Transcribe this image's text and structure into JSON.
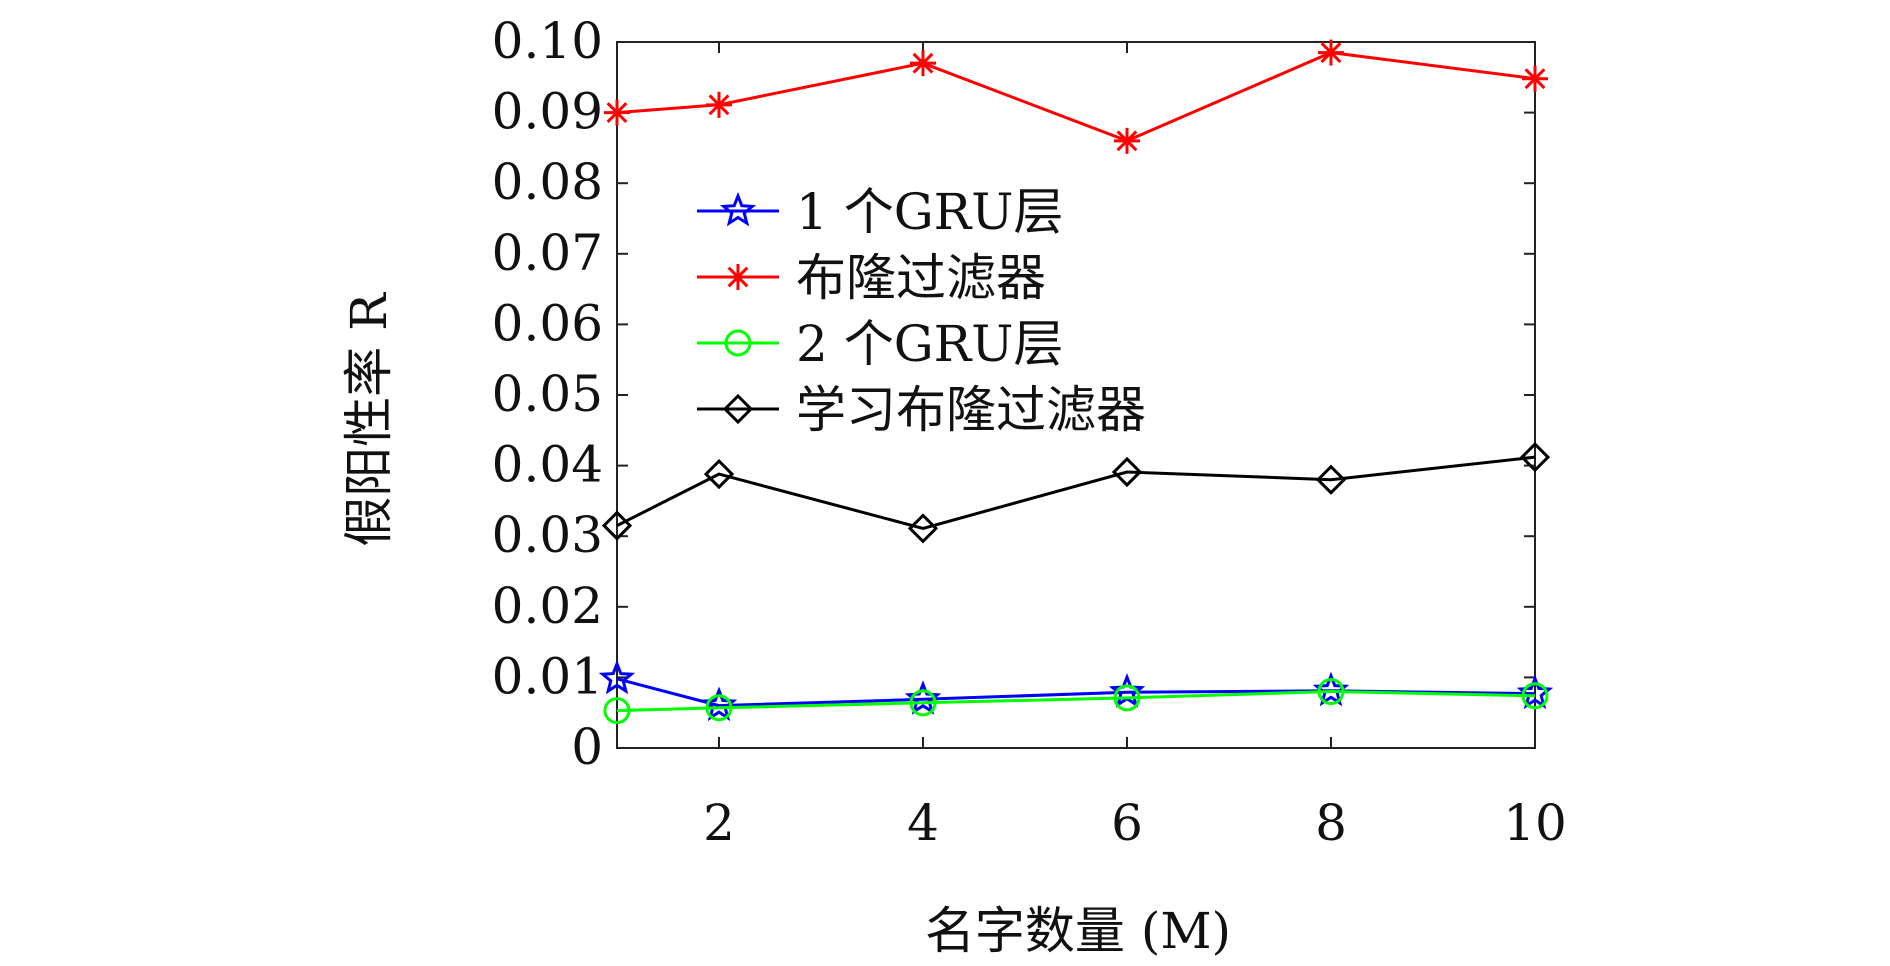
{
  "chart_data": {
    "type": "line",
    "title": "",
    "xlabel": "名字数量 (M)",
    "ylabel": "假阳性率 R",
    "xlim": [
      1,
      10
    ],
    "ylim": [
      0,
      0.1
    ],
    "xticks": [
      2,
      4,
      6,
      8,
      10
    ],
    "yticks": [
      0,
      0.01,
      0.02,
      0.03,
      0.04,
      0.05,
      0.06,
      0.07,
      0.08,
      0.09,
      0.1
    ],
    "xtick_labels": [
      "2",
      "4",
      "6",
      "8",
      "10"
    ],
    "ytick_labels": [
      "0",
      "0.01",
      "0.02",
      "0.03",
      "0.04",
      "0.05",
      "0.06",
      "0.07",
      "0.08",
      "0.09",
      "0.10"
    ],
    "grid": false,
    "legend_position": "upper-left-inside",
    "x": [
      1,
      2,
      4,
      6,
      8,
      10
    ],
    "series": [
      {
        "name": "1 个GRU层",
        "values": [
          0.0098,
          0.006,
          0.0069,
          0.0079,
          0.0081,
          0.0077
        ],
        "color": "#0000ff",
        "marker": "star"
      },
      {
        "name": "布隆过滤器",
        "values": [
          0.09,
          0.0911,
          0.097,
          0.086,
          0.0985,
          0.0948
        ],
        "color": "#ff0000",
        "marker": "asterisk"
      },
      {
        "name": "2 个GRU层",
        "values": [
          0.0053,
          0.0057,
          0.0064,
          0.0071,
          0.008,
          0.0074
        ],
        "color": "#00ff00",
        "marker": "circle"
      },
      {
        "name": "学习布隆过滤器",
        "values": [
          0.0315,
          0.0388,
          0.0311,
          0.0391,
          0.038,
          0.0412
        ],
        "color": "#000000",
        "marker": "diamond"
      }
    ]
  }
}
